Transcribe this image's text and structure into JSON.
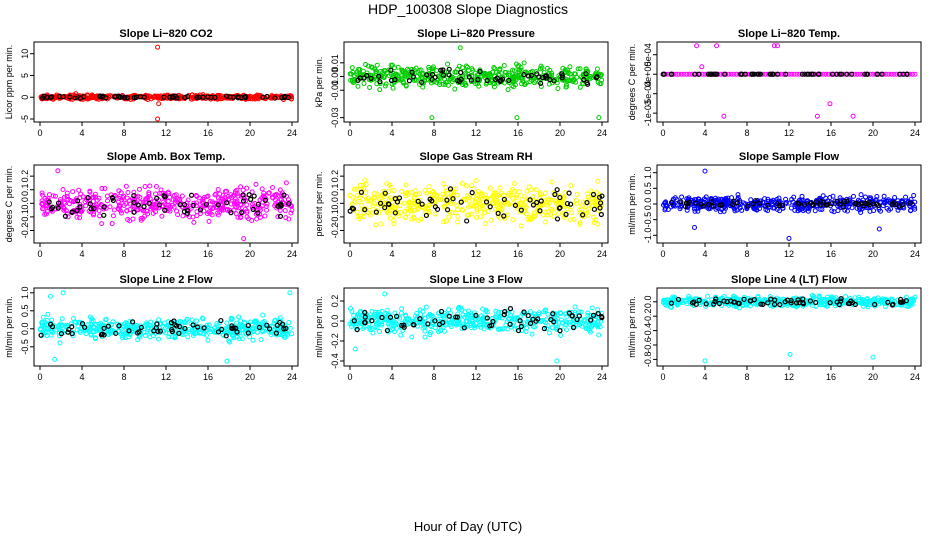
{
  "figure": {
    "title": "HDP_100308  Slope Diagnostics",
    "xlabel": "Hour of Day (UTC)"
  },
  "chart_data": [
    {
      "type": "scatter",
      "title": "Slope Li−820 CO2",
      "ylabel": "Licor ppm per min.",
      "color": "#ff0000",
      "xlim": [
        0,
        24
      ],
      "xticks": [
        0,
        4,
        8,
        12,
        16,
        20,
        24
      ],
      "ylim": [
        -5,
        12
      ],
      "yticks": [
        {
          "v": -5,
          "label": "-5"
        },
        {
          "v": 0,
          "label": "0"
        },
        {
          "v": 5,
          "label": "5"
        },
        {
          "v": 10,
          "label": "10"
        }
      ],
      "noise": {
        "center": 0,
        "amp": 0.7,
        "bamp": 0.35
      },
      "outliers": [
        [
          11.2,
          11.5
        ],
        [
          11.3,
          -1.5
        ],
        [
          11.2,
          -5.0
        ],
        [
          3.4,
          0.8
        ]
      ]
    },
    {
      "type": "scatter",
      "title": "Slope Li−820 Pressure",
      "ylabel": "kPa per min.",
      "color": "#00cc00",
      "xlim": [
        0,
        24
      ],
      "xticks": [
        0,
        4,
        8,
        12,
        16,
        20,
        24
      ],
      "ylim": [
        -0.031,
        0.023
      ],
      "yticks": [
        {
          "v": -0.03,
          "label": "-0.03"
        },
        {
          "v": -0.01,
          "label": "-0.01"
        },
        {
          "v": 0,
          "label": "0.00"
        },
        {
          "v": 0.01,
          "label": "0.01"
        }
      ],
      "noise": {
        "center": 0,
        "amp": 0.012,
        "bamp": 0.006
      },
      "outliers": [
        [
          7.8,
          -0.03
        ],
        [
          15.9,
          -0.03
        ],
        [
          23.7,
          -0.03
        ],
        [
          10.5,
          0.021
        ]
      ]
    },
    {
      "type": "scatter",
      "title": "Slope Li−820 Temp.",
      "ylabel": "degrees C per min.",
      "color": "#ff00ff",
      "xlim": [
        0,
        24
      ],
      "xticks": [
        0,
        4,
        8,
        12,
        16,
        20,
        24
      ],
      "ylim": [
        -0.00115,
        0.00075
      ],
      "yticks": [
        {
          "v": -0.001,
          "label": "-1e-03"
        },
        {
          "v": -0.0005,
          "label": "-5e-04"
        },
        {
          "v": 0,
          "label": "0e+00"
        },
        {
          "v": 0.0005,
          "label": "5e-04"
        }
      ],
      "noise": {
        "center": 0,
        "amp": 0.0,
        "bamp": 0.0
      },
      "outliers": [
        [
          3.2,
          0.00073
        ],
        [
          5.1,
          0.00073
        ],
        [
          10.6,
          0.00073
        ],
        [
          10.9,
          0.00073
        ],
        [
          3.7,
          0.00019
        ],
        [
          5.8,
          -0.00108
        ],
        [
          14.7,
          -0.00108
        ],
        [
          15.9,
          -0.00076
        ],
        [
          18.1,
          -0.00108
        ]
      ]
    },
    {
      "type": "scatter",
      "title": "Slope Amb. Box Temp.",
      "ylabel": "degrees C per min.",
      "color": "#ff00ff",
      "xlim": [
        0,
        24
      ],
      "xticks": [
        0,
        4,
        8,
        12,
        16,
        20,
        24
      ],
      "ylim": [
        -0.27,
        0.26
      ],
      "yticks": [
        {
          "v": -0.2,
          "label": "-0.2"
        },
        {
          "v": -0.1,
          "label": "-0.1"
        },
        {
          "v": 0,
          "label": "0.0"
        },
        {
          "v": 0.1,
          "label": "0.1"
        },
        {
          "v": 0.2,
          "label": "0.2"
        }
      ],
      "noise": {
        "center": 0,
        "amp": 0.17,
        "bamp": 0.12
      },
      "outliers": [
        [
          19.4,
          -0.26
        ],
        [
          1.7,
          0.24
        ]
      ]
    },
    {
      "type": "scatter",
      "title": "Slope Gas Stream RH",
      "ylabel": "percent per min.",
      "color": "#ffff00",
      "xlim": [
        0,
        24
      ],
      "xticks": [
        0,
        4,
        8,
        12,
        16,
        20,
        24
      ],
      "ylim": [
        -0.27,
        0.26
      ],
      "yticks": [
        {
          "v": -0.2,
          "label": "-0.2"
        },
        {
          "v": -0.1,
          "label": "-0.1"
        },
        {
          "v": 0,
          "label": "0.0"
        },
        {
          "v": 0.1,
          "label": "0.1"
        },
        {
          "v": 0.2,
          "label": "0.2"
        }
      ],
      "noise": {
        "center": 0,
        "amp": 0.2,
        "bamp": 0.14
      },
      "outliers": []
    },
    {
      "type": "scatter",
      "title": "Slope Sample Flow",
      "ylabel": "ml/min per min.",
      "color": "#0000ff",
      "xlim": [
        0,
        24
      ],
      "xticks": [
        0,
        4,
        8,
        12,
        16,
        20,
        24
      ],
      "ylim": [
        -1.15,
        1.15
      ],
      "yticks": [
        {
          "v": -1,
          "label": "-1.0"
        },
        {
          "v": -0.5,
          "label": "-0.5"
        },
        {
          "v": 0,
          "label": "0.0"
        },
        {
          "v": 0.5,
          "label": "0.5"
        },
        {
          "v": 1,
          "label": "1.0"
        }
      ],
      "noise": {
        "center": 0,
        "amp": 0.35,
        "bamp": 0.12
      },
      "outliers": [
        [
          4.0,
          1.05
        ],
        [
          12.0,
          -1.1
        ],
        [
          3.0,
          -0.75
        ],
        [
          20.6,
          -0.8
        ]
      ]
    },
    {
      "type": "scatter",
      "title": "Slope Line 2 Flow",
      "ylabel": "ml/min per min.",
      "color": "#00ffff",
      "xlim": [
        0,
        24
      ],
      "xticks": [
        0,
        4,
        8,
        12,
        16,
        20,
        24
      ],
      "ylim": [
        -0.95,
        1.05
      ],
      "yticks": [
        {
          "v": -0.5,
          "label": "-0.5"
        },
        {
          "v": 0,
          "label": "0.0"
        },
        {
          "v": 0.5,
          "label": "0.5"
        },
        {
          "v": 1,
          "label": "1.0"
        }
      ],
      "noise": {
        "center": 0,
        "amp": 0.42,
        "bamp": 0.25
      },
      "outliers": [
        [
          1.0,
          0.9
        ],
        [
          2.2,
          1.0
        ],
        [
          23.8,
          1.0
        ],
        [
          1.4,
          -0.85
        ],
        [
          17.8,
          -0.9
        ]
      ]
    },
    {
      "type": "scatter",
      "title": "Slope Line 3 Flow",
      "ylabel": "ml/min per min.",
      "color": "#00ffff",
      "xlim": [
        0,
        24
      ],
      "xticks": [
        0,
        4,
        8,
        12,
        16,
        20,
        24
      ],
      "ylim": [
        -0.42,
        0.3
      ],
      "yticks": [
        {
          "v": -0.4,
          "label": "-0.4"
        },
        {
          "v": -0.2,
          "label": "-0.2"
        },
        {
          "v": 0,
          "label": "0.0"
        },
        {
          "v": 0.2,
          "label": "0.2"
        }
      ],
      "noise": {
        "center": 0,
        "amp": 0.18,
        "bamp": 0.14
      },
      "outliers": [
        [
          19.7,
          -0.4
        ],
        [
          3.3,
          0.27
        ],
        [
          0.5,
          -0.28
        ]
      ]
    },
    {
      "type": "scatter",
      "title": "Slope Line 4 (LT) Flow",
      "ylabel": "ml/min per min.",
      "color": "#00ffff",
      "xlim": [
        0,
        24
      ],
      "xticks": [
        0,
        4,
        8,
        12,
        16,
        20,
        24
      ],
      "ylim": [
        -0.85,
        0.15
      ],
      "yticks": [
        {
          "v": -0.8,
          "label": "-0.8"
        },
        {
          "v": -0.6,
          "label": "-0.6"
        },
        {
          "v": -0.4,
          "label": "-0.4"
        },
        {
          "v": -0.2,
          "label": "-0.2"
        },
        {
          "v": 0,
          "label": "0.0"
        }
      ],
      "noise": {
        "center": 0,
        "amp": 0.1,
        "bamp": 0.05
      },
      "outliers": [
        [
          4.0,
          -0.82
        ],
        [
          12.1,
          -0.73
        ],
        [
          20.0,
          -0.77
        ]
      ]
    }
  ]
}
